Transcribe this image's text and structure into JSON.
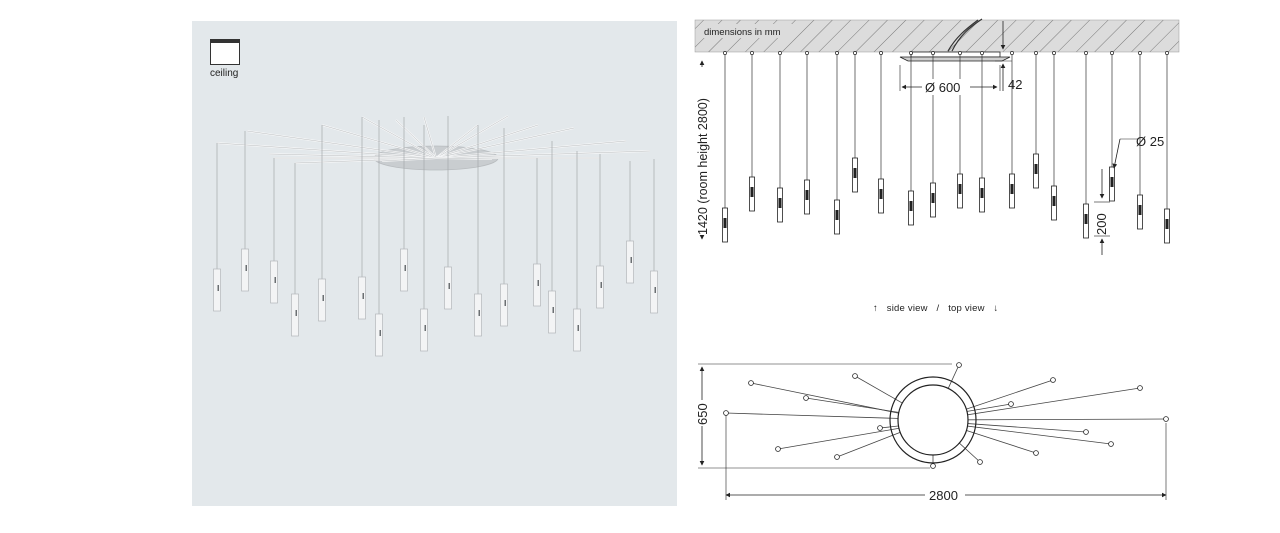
{
  "product_panel": {
    "mount_label": "ceiling",
    "mount_icon": "ceiling-mount-icon"
  },
  "side_view": {
    "units_note": "dimensions in mm",
    "canopy_diameter": "Ø 600",
    "canopy_height": "42",
    "pendant_diameter": "Ø 25",
    "pendant_length": "200",
    "suspension_height": "1420 (room height 2800)"
  },
  "view_switch": {
    "side_label": "side view",
    "separator": "/",
    "top_label": "top view",
    "up_arrow_icon": "arrow-up-icon",
    "down_arrow_icon": "arrow-down-icon"
  },
  "top_view": {
    "width": "650",
    "length": "2800"
  },
  "colors": {
    "panel_bg": "#e3e8eb",
    "line": "#222222",
    "hatch": "#dcdcdc"
  }
}
